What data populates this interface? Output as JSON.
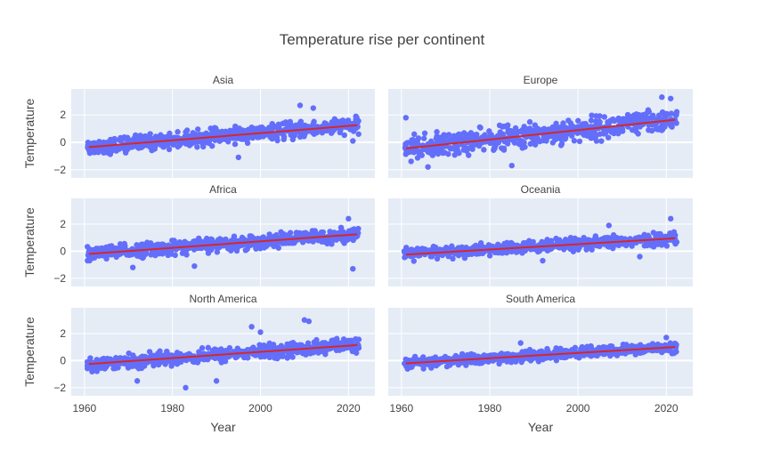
{
  "chart_data": {
    "type": "scatter",
    "title": "Temperature rise per continent",
    "xlabel": "Year",
    "ylabel": "Temperature",
    "x_range": [
      1957,
      2026
    ],
    "y_range": [
      -2.6,
      3.9
    ],
    "x_ticks": [
      1960,
      1980,
      2000,
      2020
    ],
    "y_ticks": [
      -2,
      0,
      2
    ],
    "grid": true,
    "colors": {
      "points": "#636efa",
      "trend": "#d62728",
      "plot_bg": "#e5ecf6",
      "grid": "#ffffff"
    },
    "panels": [
      {
        "name": "Asia",
        "trend": {
          "x": [
            1961,
            2022
          ],
          "y": [
            -0.35,
            1.25
          ]
        },
        "spread": 0.5,
        "outliers": [
          [
            2009,
            2.7
          ],
          [
            1995,
            -1.1
          ],
          [
            2021,
            0.1
          ],
          [
            2012,
            2.5
          ]
        ]
      },
      {
        "name": "Europe",
        "trend": {
          "x": [
            1961,
            2022
          ],
          "y": [
            -0.45,
            1.65
          ]
        },
        "spread": 0.75,
        "outliers": [
          [
            1961,
            1.8
          ],
          [
            2019,
            3.3
          ],
          [
            1985,
            -1.7
          ],
          [
            1966,
            -1.8
          ],
          [
            2021,
            3.2
          ]
        ]
      },
      {
        "name": "Africa",
        "trend": {
          "x": [
            1961,
            2022
          ],
          "y": [
            -0.2,
            1.25
          ]
        },
        "spread": 0.45,
        "outliers": [
          [
            2021,
            -1.3
          ],
          [
            2020,
            2.4
          ],
          [
            1985,
            -1.1
          ],
          [
            1971,
            -1.2
          ]
        ]
      },
      {
        "name": "Oceania",
        "trend": {
          "x": [
            1961,
            2022
          ],
          "y": [
            -0.25,
            0.95
          ]
        },
        "spread": 0.4,
        "outliers": [
          [
            2021,
            2.4
          ],
          [
            2007,
            1.9
          ],
          [
            2014,
            -0.4
          ],
          [
            1992,
            -0.7
          ]
        ]
      },
      {
        "name": "North America",
        "trend": {
          "x": [
            1961,
            2022
          ],
          "y": [
            -0.25,
            1.15
          ]
        },
        "spread": 0.45,
        "outliers": [
          [
            1983,
            -2.0
          ],
          [
            1972,
            -1.5
          ],
          [
            1998,
            2.5
          ],
          [
            2010,
            3.0
          ],
          [
            2011,
            2.9
          ],
          [
            1990,
            -1.5
          ],
          [
            2000,
            2.1
          ]
        ]
      },
      {
        "name": "South America",
        "trend": {
          "x": [
            1961,
            2022
          ],
          "y": [
            -0.2,
            1.0
          ]
        },
        "spread": 0.35,
        "outliers": [
          [
            1965,
            -0.6
          ],
          [
            2020,
            1.7
          ],
          [
            1987,
            1.3
          ]
        ]
      }
    ]
  }
}
